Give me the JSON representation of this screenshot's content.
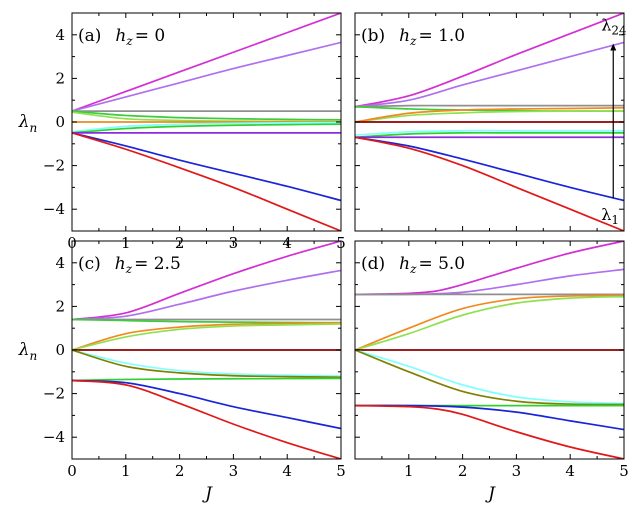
{
  "chart_data": [
    {
      "type": "line",
      "panel": "(a)",
      "annotation": "h_z = 0",
      "label_parts": [
        "(a)",
        "h",
        "z",
        "= 0"
      ],
      "xlim": [
        0,
        5
      ],
      "ylim": [
        -5,
        5
      ],
      "xticks": [
        "0",
        "1",
        "2",
        "3",
        "4",
        "5"
      ],
      "yticks": [
        "4",
        "2",
        "0",
        "−2",
        "−4"
      ],
      "xlabel": "",
      "ylabel": "λ",
      "ylabel_sub": "n",
      "series": [
        {
          "color": "#d42fd4",
          "x": [
            0,
            1,
            2,
            3,
            4,
            5
          ],
          "values": [
            0.5,
            1.4,
            2.3,
            3.2,
            4.1,
            5.0
          ]
        },
        {
          "color": "#b070ee",
          "x": [
            0,
            1,
            2,
            3,
            4,
            5
          ],
          "values": [
            0.5,
            1.15,
            1.8,
            2.45,
            3.05,
            3.65
          ]
        },
        {
          "color": "#909090",
          "x": [
            0,
            1,
            2,
            3,
            4,
            5
          ],
          "values": [
            0.5,
            0.5,
            0.5,
            0.5,
            0.5,
            0.5
          ]
        },
        {
          "color": "#3ccc3c",
          "x": [
            0,
            1,
            2,
            3,
            4,
            5
          ],
          "values": [
            0.5,
            0.3,
            0.2,
            0.15,
            0.12,
            0.1
          ]
        },
        {
          "color": "#90e050",
          "x": [
            0,
            1,
            2,
            3,
            4,
            5
          ],
          "values": [
            0.45,
            0.15,
            0.07,
            0.04,
            0.03,
            0.02
          ]
        },
        {
          "color": "#f08a20",
          "x": [
            0,
            1,
            2,
            3,
            4,
            5
          ],
          "values": [
            0,
            0,
            0,
            0,
            0,
            0
          ]
        },
        {
          "color": "#80ffff",
          "x": [
            0,
            1,
            2,
            3,
            4,
            5
          ],
          "values": [
            -0.45,
            -0.2,
            -0.1,
            -0.06,
            -0.04,
            -0.03
          ]
        },
        {
          "color": "#30d030",
          "x": [
            0,
            1,
            2,
            3,
            4,
            5
          ],
          "values": [
            -0.5,
            -0.3,
            -0.2,
            -0.15,
            -0.12,
            -0.1
          ]
        },
        {
          "color": "#8a2be2",
          "x": [
            0,
            1,
            2,
            3,
            4,
            5
          ],
          "values": [
            -0.5,
            -0.5,
            -0.5,
            -0.5,
            -0.5,
            -0.5
          ]
        },
        {
          "color": "#1a24d8",
          "x": [
            0,
            1,
            2,
            3,
            4,
            5
          ],
          "values": [
            -0.5,
            -1.1,
            -1.75,
            -2.35,
            -2.95,
            -3.6
          ]
        },
        {
          "color": "#e01818",
          "x": [
            0,
            1,
            2,
            3,
            4,
            5
          ],
          "values": [
            -0.5,
            -1.25,
            -2.1,
            -3.0,
            -4.0,
            -5.0
          ]
        }
      ]
    },
    {
      "type": "line",
      "panel": "(b)",
      "annotation": "h_z = 1.0",
      "label_parts": [
        "(b)",
        "h",
        "z",
        "= 1.0"
      ],
      "xlim": [
        0,
        5
      ],
      "ylim": [
        -5,
        5
      ],
      "xticks": [],
      "yticks": [],
      "xlabel": "",
      "ylabel": "",
      "arrow_top_label": "λ",
      "arrow_top_sub": "24",
      "arrow_bottom_label": "λ",
      "arrow_bottom_sub": "1",
      "arrow_x": 4.8,
      "arrow_from": -3.5,
      "arrow_to": 3.6,
      "series": [
        {
          "color": "#d42fd4",
          "x": [
            0,
            1,
            2,
            3,
            4,
            5
          ],
          "values": [
            0.7,
            1.2,
            2.1,
            3.1,
            4.05,
            5.0
          ]
        },
        {
          "color": "#b070ee",
          "x": [
            0,
            1,
            2,
            3,
            4,
            5
          ],
          "values": [
            0.7,
            1.0,
            1.7,
            2.35,
            3.0,
            3.65
          ]
        },
        {
          "color": "#909090",
          "x": [
            0,
            1,
            2,
            3,
            4,
            5
          ],
          "values": [
            0.7,
            0.75,
            0.75,
            0.75,
            0.75,
            0.75
          ]
        },
        {
          "color": "#3ccc3c",
          "x": [
            0,
            1,
            2,
            3,
            4,
            5
          ],
          "values": [
            0.7,
            0.6,
            0.55,
            0.52,
            0.5,
            0.5
          ]
        },
        {
          "color": "#90e050",
          "x": [
            0,
            1,
            2,
            3,
            4,
            5
          ],
          "values": [
            0,
            0.3,
            0.42,
            0.48,
            0.5,
            0.5
          ]
        },
        {
          "color": "#f08a20",
          "x": [
            0,
            1,
            2,
            3,
            4,
            5
          ],
          "values": [
            0,
            0.4,
            0.55,
            0.6,
            0.62,
            0.65
          ]
        },
        {
          "color": "#8b0000",
          "x": [
            0,
            1,
            2,
            3,
            4,
            5
          ],
          "values": [
            0,
            0,
            0,
            0,
            0,
            0
          ]
        },
        {
          "color": "#80ffff",
          "x": [
            0,
            1,
            2,
            3,
            4,
            5
          ],
          "values": [
            -0.6,
            -0.45,
            -0.4,
            -0.4,
            -0.4,
            -0.4
          ]
        },
        {
          "color": "#30d030",
          "x": [
            0,
            1,
            2,
            3,
            4,
            5
          ],
          "values": [
            -0.7,
            -0.55,
            -0.5,
            -0.5,
            -0.5,
            -0.5
          ]
        },
        {
          "color": "#8a2be2",
          "x": [
            0,
            1,
            2,
            3,
            4,
            5
          ],
          "values": [
            -0.7,
            -0.7,
            -0.7,
            -0.7,
            -0.7,
            -0.7
          ]
        },
        {
          "color": "#1a24d8",
          "x": [
            0,
            1,
            2,
            3,
            4,
            5
          ],
          "values": [
            -0.7,
            -1.1,
            -1.7,
            -2.35,
            -3.0,
            -3.6
          ]
        },
        {
          "color": "#e01818",
          "x": [
            0,
            1,
            2,
            3,
            4,
            5
          ],
          "values": [
            -0.7,
            -1.2,
            -2.0,
            -3.0,
            -4.0,
            -5.0
          ]
        }
      ]
    },
    {
      "type": "line",
      "panel": "(c)",
      "annotation": "h_z = 2.5",
      "label_parts": [
        "(c)",
        "h",
        "z",
        "= 2.5"
      ],
      "xlim": [
        0,
        5
      ],
      "ylim": [
        -5,
        5
      ],
      "xticks": [
        "0",
        "1",
        "2",
        "3",
        "4",
        "5"
      ],
      "yticks": [
        "4",
        "2",
        "0",
        "−2",
        "−4"
      ],
      "xlabel": "J",
      "ylabel": "λ",
      "ylabel_sub": "n",
      "series": [
        {
          "color": "#d42fd4",
          "x": [
            0,
            1,
            2,
            3,
            4,
            5
          ],
          "values": [
            1.4,
            1.7,
            2.6,
            3.5,
            4.3,
            5.0
          ]
        },
        {
          "color": "#b070ee",
          "x": [
            0,
            1,
            2,
            3,
            4,
            5
          ],
          "values": [
            1.4,
            1.55,
            2.1,
            2.7,
            3.2,
            3.65
          ]
        },
        {
          "color": "#909090",
          "x": [
            0,
            1,
            2,
            3,
            4,
            5
          ],
          "values": [
            1.4,
            1.4,
            1.4,
            1.4,
            1.4,
            1.4
          ]
        },
        {
          "color": "#3ccc3c",
          "x": [
            0,
            1,
            2,
            3,
            4,
            5
          ],
          "values": [
            1.4,
            1.35,
            1.3,
            1.28,
            1.26,
            1.25
          ]
        },
        {
          "color": "#f08a20",
          "x": [
            0,
            1,
            2,
            3,
            4,
            5
          ],
          "values": [
            0,
            0.75,
            1.05,
            1.18,
            1.22,
            1.25
          ]
        },
        {
          "color": "#90e050",
          "x": [
            0,
            1,
            2,
            3,
            4,
            5
          ],
          "values": [
            0,
            0.6,
            0.95,
            1.1,
            1.15,
            1.2
          ]
        },
        {
          "color": "#8b0000",
          "x": [
            0,
            1,
            2,
            3,
            4,
            5
          ],
          "values": [
            0,
            0,
            0,
            0,
            0,
            0
          ]
        },
        {
          "color": "#80ffff",
          "x": [
            0,
            1,
            2,
            3,
            4,
            5
          ],
          "values": [
            0,
            -0.6,
            -0.95,
            -1.1,
            -1.15,
            -1.2
          ]
        },
        {
          "color": "#808000",
          "x": [
            0,
            1,
            2,
            3,
            4,
            5
          ],
          "values": [
            0,
            -0.75,
            -1.05,
            -1.18,
            -1.22,
            -1.25
          ]
        },
        {
          "color": "#30d030",
          "x": [
            0,
            1,
            2,
            3,
            4,
            5
          ],
          "values": [
            -1.4,
            -1.35,
            -1.33,
            -1.32,
            -1.31,
            -1.3
          ]
        },
        {
          "color": "#1a24d8",
          "x": [
            0,
            1,
            2,
            3,
            4,
            5
          ],
          "values": [
            -1.4,
            -1.5,
            -2.0,
            -2.6,
            -3.1,
            -3.6
          ]
        },
        {
          "color": "#e01818",
          "x": [
            0,
            1,
            2,
            3,
            4,
            5
          ],
          "values": [
            -1.4,
            -1.6,
            -2.45,
            -3.4,
            -4.25,
            -5.0
          ]
        }
      ]
    },
    {
      "type": "line",
      "panel": "(d)",
      "annotation": "h_z = 5.0",
      "label_parts": [
        "(d)",
        "h",
        "z",
        "= 5.0"
      ],
      "xlim": [
        0,
        5
      ],
      "ylim": [
        -5,
        5
      ],
      "xticks": [
        "1",
        "2",
        "3",
        "4",
        "5"
      ],
      "yticks": [],
      "xlabel": "J",
      "ylabel": "",
      "series": [
        {
          "color": "#d42fd4",
          "x": [
            0,
            1,
            1.5,
            2,
            3,
            4,
            5
          ],
          "values": [
            2.55,
            2.6,
            2.7,
            3.0,
            3.75,
            4.45,
            5.0
          ]
        },
        {
          "color": "#b070ee",
          "x": [
            0,
            1,
            2,
            3,
            4,
            5
          ],
          "values": [
            2.55,
            2.55,
            2.65,
            3.0,
            3.4,
            3.7
          ]
        },
        {
          "color": "#909090",
          "x": [
            0,
            1,
            2,
            3,
            4,
            5
          ],
          "values": [
            2.55,
            2.55,
            2.55,
            2.55,
            2.55,
            2.55
          ]
        },
        {
          "color": "#f08a20",
          "x": [
            0,
            1,
            2,
            3,
            4,
            5
          ],
          "values": [
            0,
            1.0,
            1.9,
            2.35,
            2.48,
            2.5
          ]
        },
        {
          "color": "#90e050",
          "x": [
            0,
            1,
            2,
            3,
            4,
            5
          ],
          "values": [
            0,
            0.75,
            1.6,
            2.15,
            2.38,
            2.45
          ]
        },
        {
          "color": "#8b0000",
          "x": [
            0,
            1,
            2,
            3,
            4,
            5
          ],
          "values": [
            0,
            0,
            0,
            0,
            0,
            0
          ]
        },
        {
          "color": "#80ffff",
          "x": [
            0,
            1,
            2,
            3,
            4,
            5
          ],
          "values": [
            0,
            -0.75,
            -1.6,
            -2.15,
            -2.38,
            -2.45
          ]
        },
        {
          "color": "#808000",
          "x": [
            0,
            1,
            2,
            3,
            4,
            5
          ],
          "values": [
            0,
            -1.0,
            -1.9,
            -2.35,
            -2.48,
            -2.5
          ]
        },
        {
          "color": "#30d030",
          "x": [
            0,
            1,
            2,
            3,
            4,
            5
          ],
          "values": [
            -2.55,
            -2.55,
            -2.55,
            -2.55,
            -2.55,
            -2.55
          ]
        },
        {
          "color": "#1a24d8",
          "x": [
            0,
            1,
            2,
            3,
            4,
            5
          ],
          "values": [
            -2.55,
            -2.55,
            -2.62,
            -2.85,
            -3.25,
            -3.65
          ]
        },
        {
          "color": "#e01818",
          "x": [
            0,
            1,
            1.5,
            2,
            3,
            4,
            5
          ],
          "values": [
            -2.55,
            -2.6,
            -2.7,
            -2.95,
            -3.75,
            -4.45,
            -5.0
          ]
        }
      ]
    }
  ]
}
